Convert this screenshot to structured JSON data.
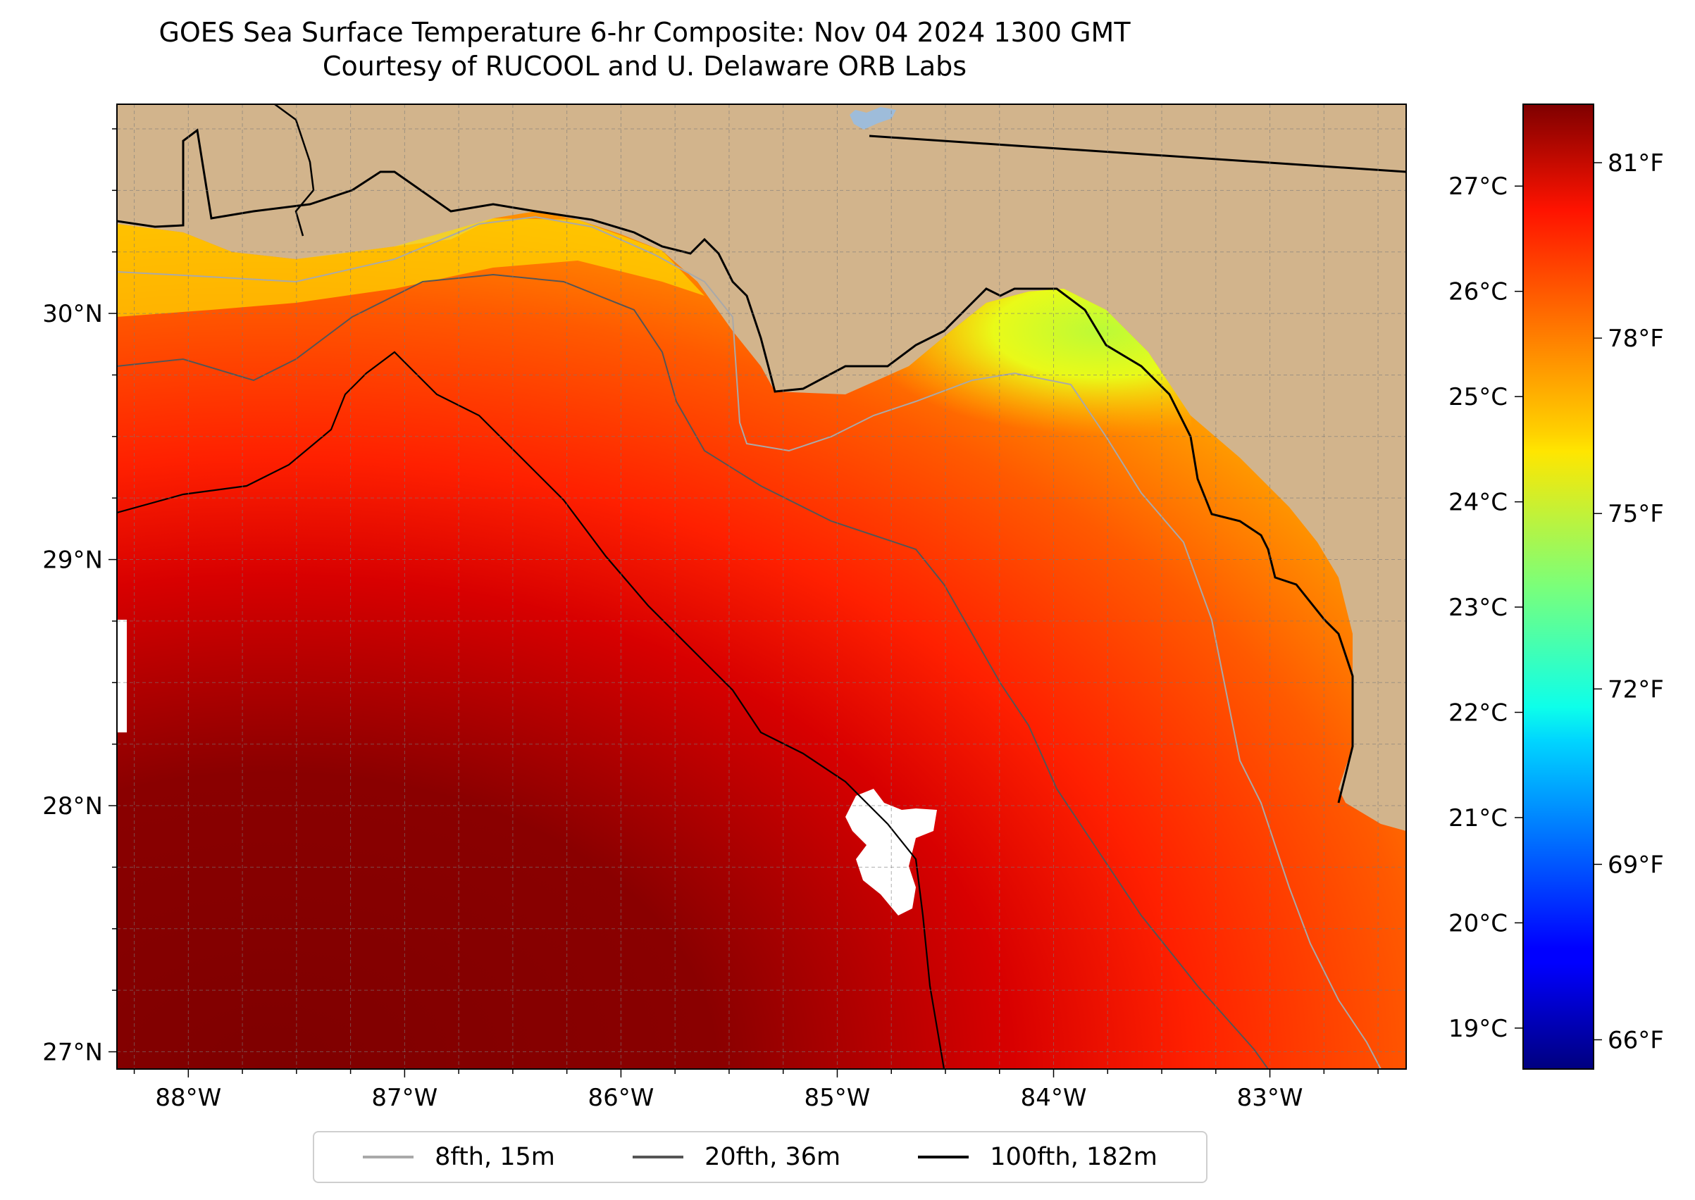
{
  "title": {
    "line1": "GOES Sea Surface Temperature 6-hr Composite: Nov 04 2024 1300 GMT",
    "line2": "Courtesy of RUCOOL and U. Delaware ORB Labs"
  },
  "map": {
    "extent": {
      "lon_min": -88.33,
      "lon_max": -82.37,
      "lat_min": 26.93,
      "lat_max": 30.85
    },
    "lon_ticks": [
      {
        "value": -88,
        "label": "88°W"
      },
      {
        "value": -87,
        "label": "87°W"
      },
      {
        "value": -86,
        "label": "86°W"
      },
      {
        "value": -85,
        "label": "85°W"
      },
      {
        "value": -84,
        "label": "84°W"
      },
      {
        "value": -83,
        "label": "83°W"
      }
    ],
    "lat_ticks": [
      {
        "value": 30,
        "label": "30°N"
      },
      {
        "value": 29,
        "label": "29°N"
      },
      {
        "value": 28,
        "label": "28°N"
      },
      {
        "value": 27,
        "label": "27°N"
      }
    ],
    "gridlines": true,
    "land_color": "#d2b48c"
  },
  "colorbar": {
    "colormap": "jet",
    "celsius_ticks": [
      {
        "value": 27,
        "label": "27°C"
      },
      {
        "value": 26,
        "label": "26°C"
      },
      {
        "value": 25,
        "label": "25°C"
      },
      {
        "value": 24,
        "label": "24°C"
      },
      {
        "value": 23,
        "label": "23°C"
      },
      {
        "value": 22,
        "label": "22°C"
      },
      {
        "value": 21,
        "label": "21°C"
      },
      {
        "value": 20,
        "label": "20°C"
      },
      {
        "value": 19,
        "label": "19°C"
      }
    ],
    "fahrenheit_ticks": [
      {
        "value": 81,
        "label": "81°F"
      },
      {
        "value": 78,
        "label": "78°F"
      },
      {
        "value": 75,
        "label": "75°F"
      },
      {
        "value": 72,
        "label": "72°F"
      },
      {
        "value": 69,
        "label": "69°F"
      },
      {
        "value": 66,
        "label": "66°F"
      }
    ],
    "f_range": [
      65.5,
      82.0
    ]
  },
  "legend": {
    "placement": "bottom-center",
    "items": [
      {
        "label": "8fth, 15m",
        "color": "#a9a9a9"
      },
      {
        "label": "20fth, 36m",
        "color": "#555555"
      },
      {
        "label": "100fth, 182m",
        "color": "#000000"
      }
    ]
  }
}
